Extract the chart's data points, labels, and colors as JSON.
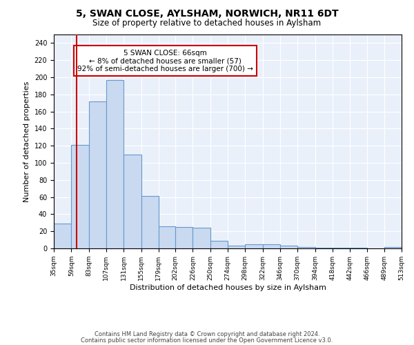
{
  "title": "5, SWAN CLOSE, AYLSHAM, NORWICH, NR11 6DT",
  "subtitle": "Size of property relative to detached houses in Aylsham",
  "xlabel": "Distribution of detached houses by size in Aylsham",
  "ylabel": "Number of detached properties",
  "bin_edges": [
    35,
    59,
    83,
    107,
    131,
    155,
    179,
    202,
    226,
    250,
    274,
    298,
    322,
    346,
    370,
    394,
    418,
    442,
    466,
    489,
    513
  ],
  "bar_heights": [
    29,
    121,
    172,
    197,
    110,
    61,
    26,
    25,
    24,
    9,
    3,
    5,
    5,
    3,
    2,
    1,
    1,
    1,
    0,
    2
  ],
  "bar_color": "#c9d9f0",
  "bar_edge_color": "#6699cc",
  "vline_x": 66,
  "vline_color": "#cc0000",
  "annotation_text": "5 SWAN CLOSE: 66sqm\n← 8% of detached houses are smaller (57)\n92% of semi-detached houses are larger (700) →",
  "annotation_box_color": "#ffffff",
  "annotation_box_edge": "#cc0000",
  "ylim": [
    0,
    250
  ],
  "yticks": [
    0,
    20,
    40,
    60,
    80,
    100,
    120,
    140,
    160,
    180,
    200,
    220,
    240
  ],
  "tick_labels": [
    "35sqm",
    "59sqm",
    "83sqm",
    "107sqm",
    "131sqm",
    "155sqm",
    "179sqm",
    "202sqm",
    "226sqm",
    "250sqm",
    "274sqm",
    "298sqm",
    "322sqm",
    "346sqm",
    "370sqm",
    "394sqm",
    "418sqm",
    "442sqm",
    "466sqm",
    "489sqm",
    "513sqm"
  ],
  "footer_line1": "Contains HM Land Registry data © Crown copyright and database right 2024.",
  "footer_line2": "Contains public sector information licensed under the Open Government Licence v3.0.",
  "plot_bg_color": "#eaf0fa"
}
